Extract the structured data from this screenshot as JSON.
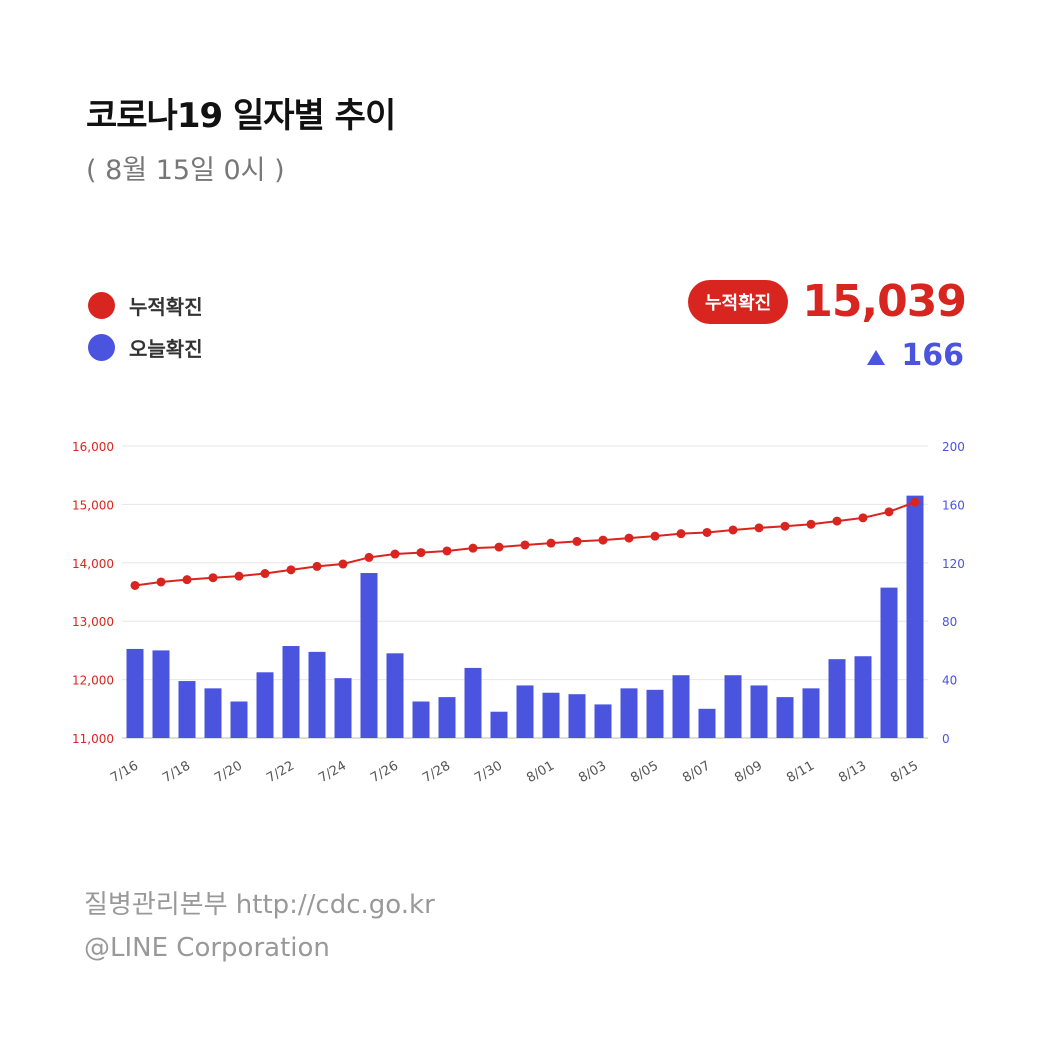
{
  "header": {
    "title": "코로나19 일자별 추이",
    "subtitle": "( 8월 15일 0시 )"
  },
  "legend": [
    {
      "label": "누적확진",
      "color": "#d9251f"
    },
    {
      "label": "오늘확진",
      "color": "#4a54df"
    }
  ],
  "summary": {
    "badge_label": "누적확진",
    "total": "15,039",
    "delta_icon": "triangle-up-icon",
    "delta": "166",
    "total_color": "#d9251f",
    "delta_color": "#4a54df"
  },
  "chart_data": {
    "type": "bar",
    "title": "",
    "x": [
      "7/16",
      "7/17",
      "7/18",
      "7/19",
      "7/20",
      "7/21",
      "7/22",
      "7/23",
      "7/24",
      "7/25",
      "7/26",
      "7/27",
      "7/28",
      "7/29",
      "7/30",
      "7/31",
      "8/01",
      "8/02",
      "8/03",
      "8/04",
      "8/05",
      "8/06",
      "8/07",
      "8/08",
      "8/09",
      "8/10",
      "8/11",
      "8/12",
      "8/13",
      "8/14",
      "8/15"
    ],
    "x_tick_labels": [
      "7/16",
      "7/18",
      "7/20",
      "7/22",
      "7/24",
      "7/26",
      "7/28",
      "7/30",
      "8/01",
      "8/03",
      "8/05",
      "8/07",
      "8/09",
      "8/11",
      "8/13",
      "8/15"
    ],
    "series": [
      {
        "name": "누적확진",
        "type": "line",
        "axis": "left",
        "color": "#d9251f",
        "values": [
          13612,
          13672,
          13711,
          13745,
          13771,
          13816,
          13879,
          13938,
          13979,
          14092,
          14150,
          14175,
          14203,
          14251,
          14269,
          14305,
          14336,
          14366,
          14389,
          14423,
          14456,
          14499,
          14519,
          14562,
          14598,
          14626,
          14660,
          14714,
          14770,
          14873,
          15039
        ]
      },
      {
        "name": "오늘확진",
        "type": "bar",
        "axis": "right",
        "color": "#4a54df",
        "values": [
          61,
          60,
          39,
          34,
          25,
          45,
          63,
          59,
          41,
          113,
          58,
          25,
          28,
          48,
          18,
          36,
          31,
          30,
          23,
          34,
          33,
          43,
          20,
          43,
          36,
          28,
          34,
          54,
          56,
          103,
          166
        ]
      }
    ],
    "y_left": {
      "min": 11000,
      "max": 16000,
      "ticks": [
        "11,000",
        "12,000",
        "13,000",
        "14,000",
        "15,000",
        "16,000"
      ],
      "color": "#d9251f"
    },
    "y_right": {
      "min": 0,
      "max": 200,
      "ticks": [
        "0",
        "40",
        "80",
        "120",
        "160",
        "200"
      ],
      "color": "#4a54df"
    },
    "grid": true,
    "legend_position": "top-left"
  },
  "footer": {
    "source": "질병관리본부 http://cdc.go.kr",
    "copyright": "@LINE Corporation"
  }
}
